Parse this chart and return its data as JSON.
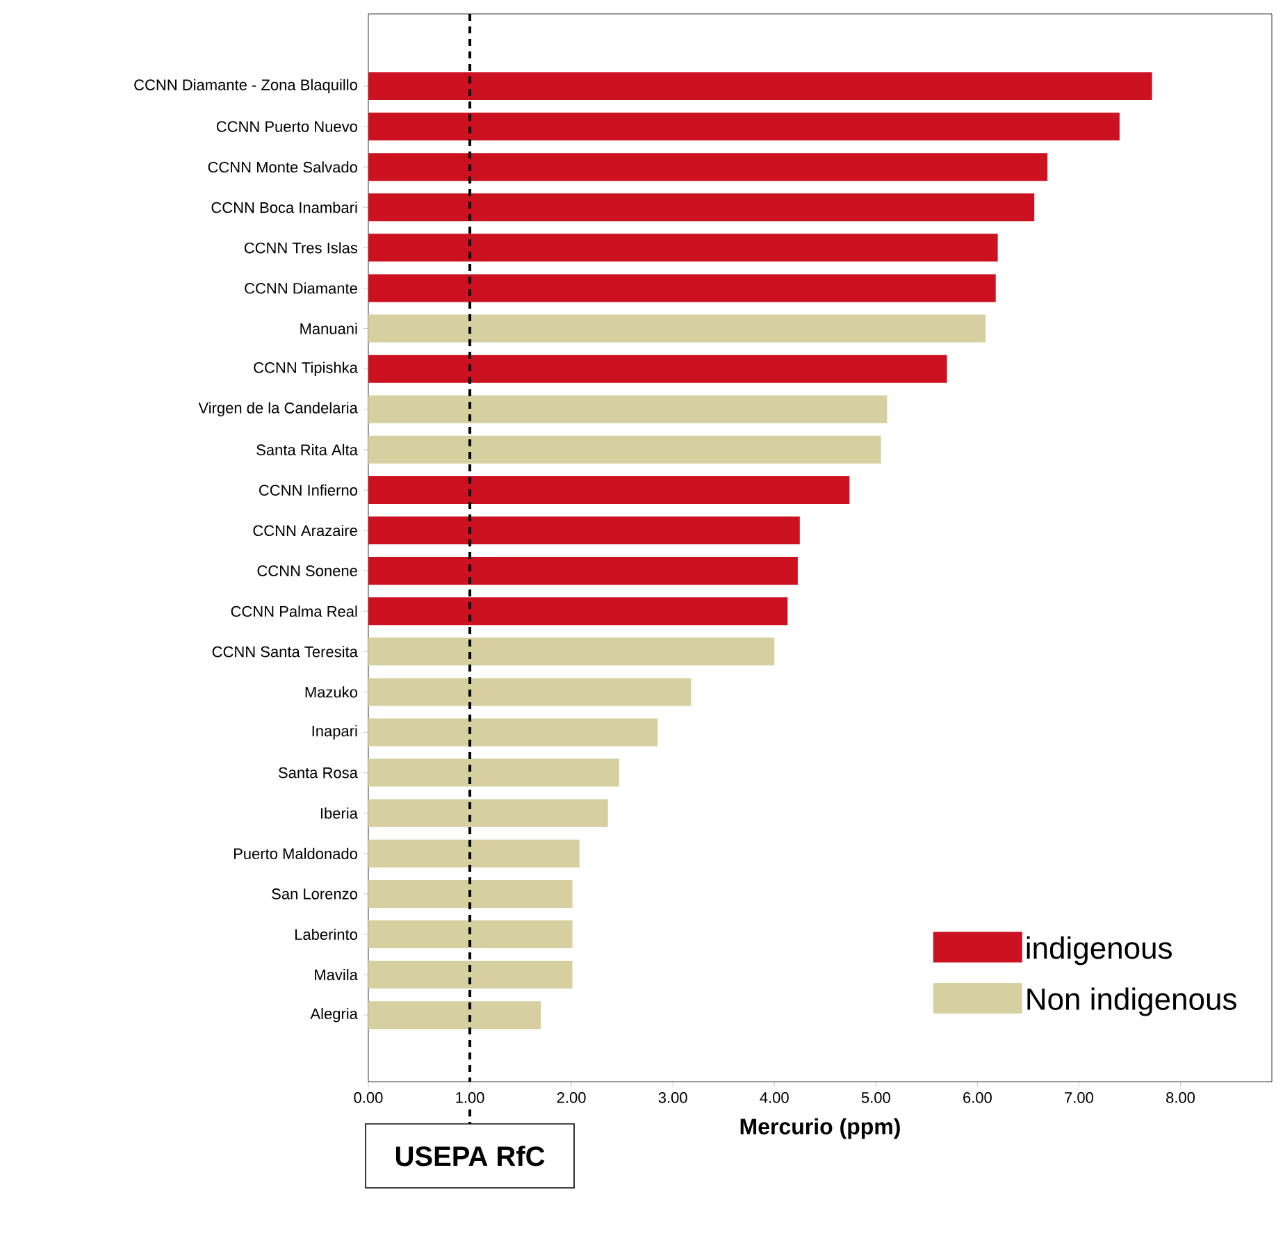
{
  "chart_data": {
    "type": "bar",
    "orientation": "horizontal",
    "xlabel": "Mercurio (ppm)",
    "categories": [
      "CCNN Diamante - Zona Blaquillo",
      "CCNN Puerto Nuevo",
      "CCNN Monte Salvado",
      "CCNN Boca Inambari",
      "CCNN Tres Islas",
      "CCNN Diamante",
      "Manuani",
      "CCNN Tipishka",
      "Virgen de la Candelaria",
      "Santa Rita Alta",
      "CCNN Infierno",
      "CCNN Arazaire",
      "CCNN Sonene",
      "CCNN Palma Real",
      "CCNN Santa Teresita",
      "Mazuko",
      "Inapari",
      "Santa Rosa",
      "Iberia",
      "Puerto Maldonado",
      "San Lorenzo",
      "Laberinto",
      "Mavila",
      "Alegria"
    ],
    "series": [
      {
        "name": "indigenous",
        "color": "#cc1120",
        "values": [
          7.72,
          7.4,
          6.69,
          6.56,
          6.2,
          6.18,
          null,
          5.7,
          null,
          null,
          4.74,
          4.25,
          4.23,
          4.13,
          null,
          null,
          null,
          null,
          null,
          null,
          null,
          null,
          null,
          null
        ]
      },
      {
        "name": "Non indigenous",
        "color": "#d6cf9f",
        "values": [
          null,
          null,
          null,
          null,
          null,
          null,
          6.08,
          null,
          5.11,
          5.05,
          null,
          null,
          null,
          null,
          4.0,
          3.18,
          2.85,
          2.47,
          2.36,
          2.08,
          2.01,
          2.01,
          2.01,
          1.7
        ]
      }
    ],
    "xlim": [
      0,
      8.9
    ],
    "xticks": [
      {
        "value": 0,
        "label": "0.00"
      },
      {
        "value": 1,
        "label": "1.00"
      },
      {
        "value": 2,
        "label": "2.00"
      },
      {
        "value": 3,
        "label": "3.00"
      },
      {
        "value": 4,
        "label": "4.00"
      },
      {
        "value": 5,
        "label": "5.00"
      },
      {
        "value": 6,
        "label": "6.00"
      },
      {
        "value": 7,
        "label": "7.00"
      },
      {
        "value": 8,
        "label": "8.00"
      }
    ],
    "ref_lines": [
      {
        "axis": "x",
        "value": 1,
        "label": "USEPA RfC",
        "color": "#000000",
        "line_style": "dashed"
      }
    ],
    "legend": "bottom right",
    "grid": false
  }
}
